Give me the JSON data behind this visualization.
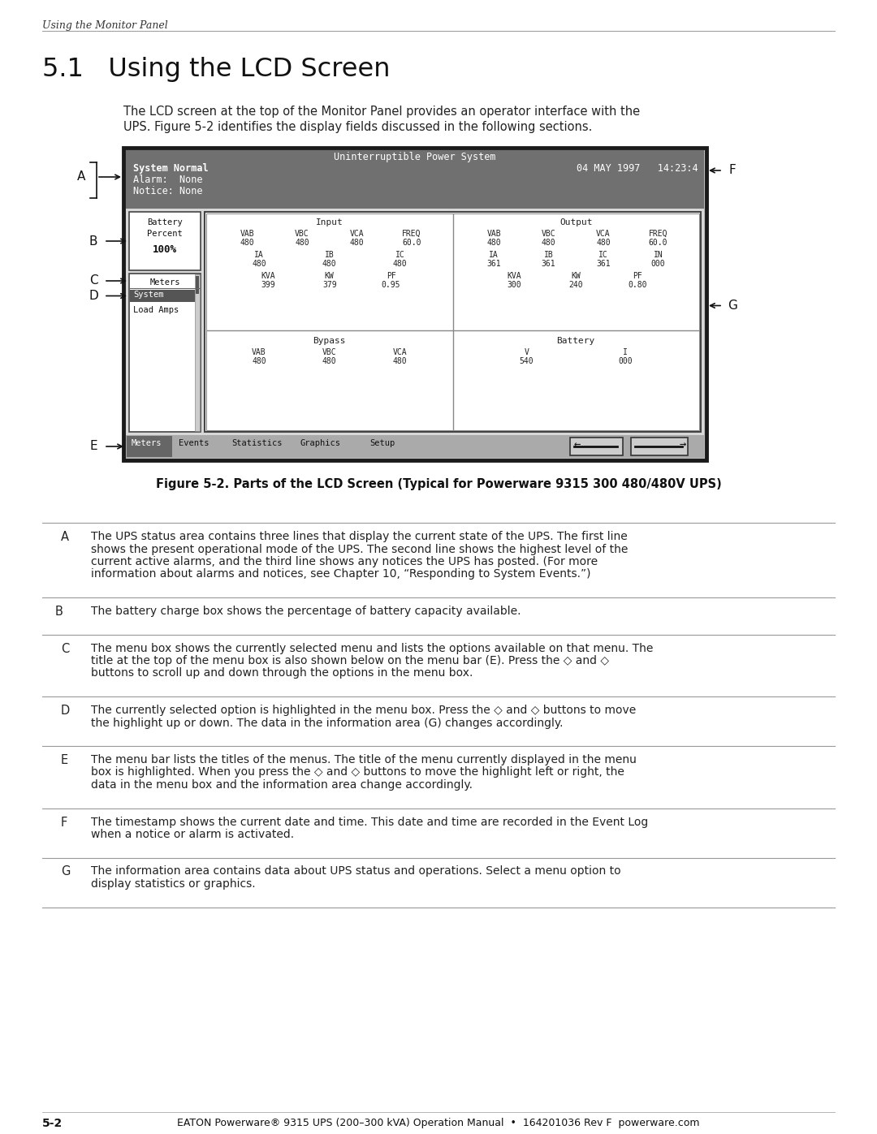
{
  "page_header": "Using the Monitor Panel",
  "section_title": "5.1   Using the LCD Screen",
  "intro_line1": "The LCD screen at the top of the Monitor Panel provides an operator interface with the",
  "intro_line2": "UPS. Figure 5-2 identifies the display fields discussed in the following sections.",
  "figure_caption": "Figure 5-2. Parts of the LCD Screen (Typical for Powerware 9315 300 480/480V UPS)",
  "lcd_title": "Uninterruptible Power System",
  "lcd_status_lines": [
    "System Normal",
    "Alarm:  None",
    "Notice: None"
  ],
  "lcd_timestamp": "04 MAY 1997   14:23:4",
  "input_section": {
    "title": "Input",
    "row1_labels": [
      "VAB",
      "VBC",
      "VCA",
      "FREQ"
    ],
    "row1_values": [
      "480",
      "480",
      "480",
      "60.0"
    ],
    "row2_labels": [
      "IA",
      "IB",
      "IC"
    ],
    "row2_values": [
      "480",
      "480",
      "480"
    ],
    "row3_labels": [
      "KVA",
      "KW",
      "PF"
    ],
    "row3_values": [
      "399",
      "379",
      "0.95"
    ]
  },
  "output_section": {
    "title": "Output",
    "row1_labels": [
      "VAB",
      "VBC",
      "VCA",
      "FREQ"
    ],
    "row1_values": [
      "480",
      "480",
      "480",
      "60.0"
    ],
    "row2_labels": [
      "IA",
      "IB",
      "IC",
      "IN"
    ],
    "row2_values": [
      "361",
      "361",
      "361",
      "000"
    ],
    "row3_labels": [
      "KVA",
      "KW",
      "PF"
    ],
    "row3_values": [
      "300",
      "240",
      "0.80"
    ]
  },
  "bypass_section": {
    "title": "Bypass",
    "row1_labels": [
      "VAB",
      "VBC",
      "VCA"
    ],
    "row1_values": [
      "480",
      "480",
      "480"
    ]
  },
  "battery_section": {
    "title": "Battery",
    "row1_labels": [
      "V",
      "I"
    ],
    "row1_values": [
      "540",
      "000"
    ]
  },
  "menu_bar": [
    "Meters",
    "Events",
    "Statistics",
    "Graphics",
    "Setup"
  ],
  "table_rows": [
    {
      "letter": "A",
      "indent": 2,
      "lines": [
        "The UPS status area contains three lines that display the current state of the UPS. The first line",
        "shows the present operational mode of the UPS. The second line shows the highest level of the",
        "current active alarms, and the third line shows any notices the UPS has posted. (For more",
        "information about alarms and notices, see Chapter 10, “Responding to System Events.”)"
      ]
    },
    {
      "letter": "B",
      "indent": 1,
      "lines": [
        "The battery charge box shows the percentage of battery capacity available."
      ]
    },
    {
      "letter": "C",
      "indent": 2,
      "lines": [
        "The menu box shows the currently selected menu and lists the options available on that menu. The",
        "title at the top of the menu box is also shown below on the menu bar (E). Press the ◇ and ◇",
        "buttons to scroll up and down through the options in the menu box."
      ]
    },
    {
      "letter": "D",
      "indent": 2,
      "lines": [
        "The currently selected option is highlighted in the menu box. Press the ◇ and ◇ buttons to move",
        "the highlight up or down. The data in the information area (G) changes accordingly."
      ]
    },
    {
      "letter": "E",
      "indent": 2,
      "lines": [
        "The menu bar lists the titles of the menus. The title of the menu currently displayed in the menu",
        "box is highlighted. When you press the ◇ and ◇ buttons to move the highlight left or right, the",
        "data in the menu box and the information area change accordingly."
      ]
    },
    {
      "letter": "F",
      "indent": 2,
      "lines": [
        "The timestamp shows the current date and time. This date and time are recorded in the Event Log",
        "when a notice or alarm is activated."
      ]
    },
    {
      "letter": "G",
      "indent": 2,
      "lines": [
        "The information area contains data about UPS status and operations. Select a menu option to",
        "display statistics or graphics."
      ]
    }
  ],
  "footer_page": "5-2",
  "footer_center": "EATON Powerware® 9315 UPS (200–300 kVA) Operation Manual  •  164201036 Rev F  powerware.com"
}
